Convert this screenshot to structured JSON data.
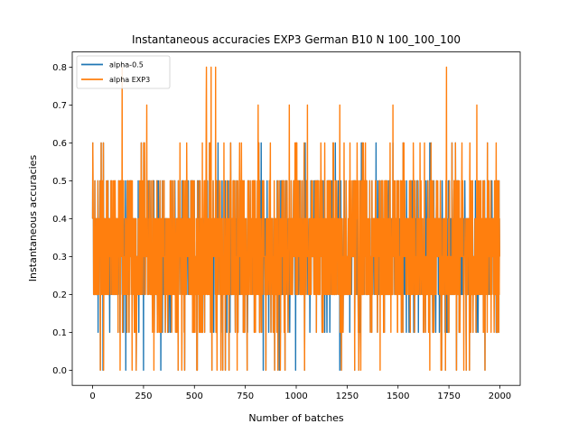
{
  "chart_data": {
    "type": "line",
    "title": "Instantaneous accuracies EXP3 German B10 N 100_100_100",
    "xlabel": "Number of batches",
    "ylabel": "Instantaneous accuracies",
    "xlim": [
      -100,
      2100
    ],
    "ylim": [
      -0.04,
      0.84
    ],
    "x_ticks": [
      0,
      250,
      500,
      750,
      1000,
      1250,
      1500,
      1750,
      2000
    ],
    "y_ticks": [
      0.0,
      0.1,
      0.2,
      0.3,
      0.4,
      0.5,
      0.6,
      0.7,
      0.8
    ],
    "x_tick_labels": [
      "0",
      "250",
      "500",
      "750",
      "1000",
      "1250",
      "1500",
      "1750",
      "2000"
    ],
    "y_tick_labels": [
      "0.0",
      "0.1",
      "0.2",
      "0.3",
      "0.4",
      "0.5",
      "0.6",
      "0.7",
      "0.8"
    ],
    "grid": false,
    "legend_position": "top-left",
    "num_points": 2000,
    "value_levels": [
      0.0,
      0.1,
      0.2,
      0.3,
      0.4,
      0.5,
      0.6,
      0.7,
      0.8
    ],
    "series": [
      {
        "name": "alpha-0.5",
        "color": "#1f77b4",
        "summary": {
          "min": 0.0,
          "max": 0.6,
          "typical_range": [
            0.2,
            0.5
          ]
        }
      },
      {
        "name": "alpha EXP3",
        "color": "#ff7f0e",
        "summary": {
          "min": 0.0,
          "max": 0.8,
          "typical_range": [
            0.2,
            0.5
          ]
        }
      }
    ]
  }
}
